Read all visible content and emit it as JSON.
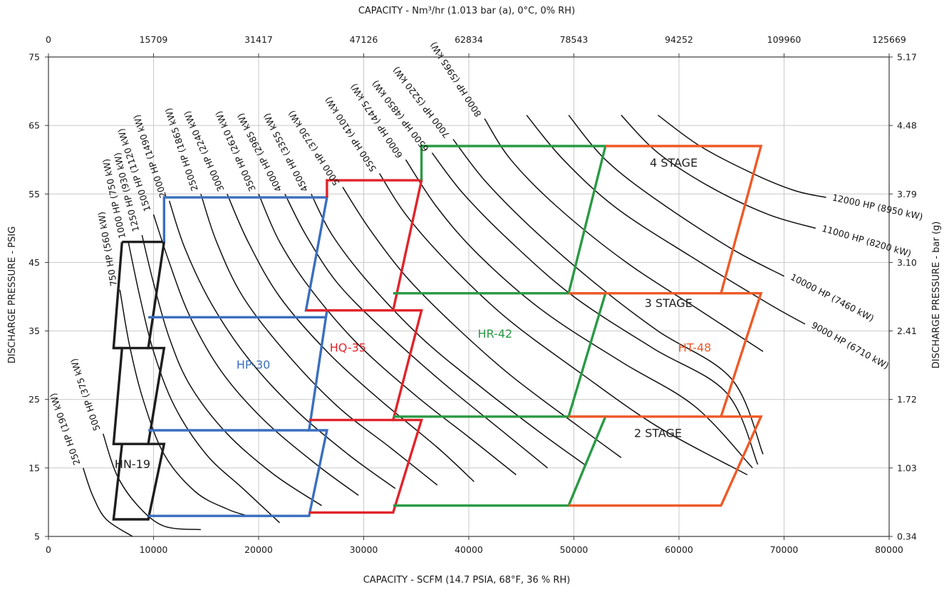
{
  "chart_data": {
    "type": "line",
    "x_bottom_label": "CAPACITY - SCFM (14.7 PSIA, 68°F, 36 % RH)",
    "x_top_label": "CAPACITY - Nm³/hr (1.013 bar (a), 0°C, 0% RH)",
    "y_left_label": "DISCHARGE PRESSURE - PSIG",
    "y_right_label": "DISCHARGE PRESSURE - bar (g)",
    "xlim": [
      0,
      80000
    ],
    "ylim": [
      5,
      75
    ],
    "x_ticks": [
      "0",
      "10000",
      "20000",
      "30000",
      "40000",
      "50000",
      "60000",
      "70000",
      "80000"
    ],
    "x_top_ticks": [
      "0",
      "15709",
      "31417",
      "47126",
      "62834",
      "78543",
      "94252",
      "109960",
      "125669"
    ],
    "y_ticks": [
      "5",
      "15",
      "25",
      "35",
      "45",
      "55",
      "65",
      "75"
    ],
    "y_right_ticks": [
      "0.34",
      "1.03",
      "1.72",
      "2.41",
      "3.10",
      "3.79",
      "4.48",
      "5.17"
    ],
    "grid": true,
    "hp_curves": [
      {
        "name": "250 HP (190 kW)",
        "points": [
          [
            3300,
            15
          ],
          [
            4200,
            11
          ],
          [
            5500,
            7.5
          ],
          [
            8000,
            5
          ]
        ]
      },
      {
        "name": "500 HP (375 kW)",
        "points": [
          [
            5200,
            20
          ],
          [
            6500,
            14
          ],
          [
            8500,
            9.5
          ],
          [
            11000,
            6.5
          ],
          [
            14500,
            6
          ]
        ]
      },
      {
        "name": "750 HP (560 kW)",
        "points": [
          [
            6800,
            41
          ],
          [
            7700,
            33
          ],
          [
            9000,
            25
          ],
          [
            11000,
            17
          ],
          [
            14000,
            11.5
          ],
          [
            17000,
            9
          ],
          [
            19000,
            8
          ]
        ]
      },
      {
        "name": "1000 HP (750 kW)",
        "points": [
          [
            7600,
            48
          ],
          [
            8700,
            40
          ],
          [
            10000,
            32
          ],
          [
            12000,
            24
          ],
          [
            15000,
            17
          ],
          [
            18500,
            12
          ],
          [
            22000,
            7
          ]
        ]
      },
      {
        "name": "1250 HP (930 kW)",
        "points": [
          [
            8900,
            49
          ],
          [
            10000,
            42
          ],
          [
            11500,
            34
          ],
          [
            13500,
            27
          ],
          [
            17000,
            20
          ],
          [
            21500,
            14
          ],
          [
            26000,
            9.5
          ]
        ]
      },
      {
        "name": "1500 HP (1120 kW)",
        "points": [
          [
            10000,
            52
          ],
          [
            11500,
            45
          ],
          [
            13500,
            37
          ],
          [
            16500,
            29
          ],
          [
            20500,
            22
          ],
          [
            25500,
            15.5
          ],
          [
            29500,
            11
          ]
        ]
      },
      {
        "name": "2000 HP (1490 kW)",
        "points": [
          [
            11500,
            54
          ],
          [
            13000,
            47
          ],
          [
            15500,
            39
          ],
          [
            19000,
            31
          ],
          [
            23500,
            23.5
          ],
          [
            28500,
            17
          ],
          [
            33000,
            12
          ]
        ]
      },
      {
        "name": "2500 HP (1865 kW)",
        "points": [
          [
            14500,
            55
          ],
          [
            16000,
            48
          ],
          [
            18500,
            40
          ],
          [
            22500,
            32
          ],
          [
            27500,
            24
          ],
          [
            32500,
            18
          ],
          [
            37000,
            12.5
          ]
        ]
      },
      {
        "name": "3000 HP (2240 kW)",
        "points": [
          [
            17000,
            55
          ],
          [
            19000,
            48
          ],
          [
            22000,
            40
          ],
          [
            26500,
            32
          ],
          [
            31500,
            25
          ],
          [
            37000,
            18
          ],
          [
            40500,
            13
          ]
        ]
      },
      {
        "name": "3500 HP (2610 kW)",
        "points": [
          [
            20000,
            55
          ],
          [
            22000,
            48
          ],
          [
            25000,
            41
          ],
          [
            29500,
            33
          ],
          [
            35000,
            25.5
          ],
          [
            40000,
            19.5
          ],
          [
            44500,
            14
          ]
        ]
      },
      {
        "name": "4000 HP (2985 kW)",
        "points": [
          [
            22500,
            55
          ],
          [
            24500,
            49
          ],
          [
            27500,
            42
          ],
          [
            32000,
            35
          ],
          [
            37500,
            27.5
          ],
          [
            43500,
            20
          ],
          [
            47500,
            15
          ]
        ]
      },
      {
        "name": "4500 HP (3355 kW)",
        "points": [
          [
            25000,
            55
          ],
          [
            27000,
            49
          ],
          [
            30500,
            42
          ],
          [
            35500,
            34
          ],
          [
            41000,
            27
          ],
          [
            46500,
            20.5
          ],
          [
            51000,
            15.5
          ]
        ]
      },
      {
        "name": "5000 HP (3730 kW)",
        "points": [
          [
            28000,
            56
          ],
          [
            30500,
            50
          ],
          [
            34000,
            43
          ],
          [
            38500,
            36
          ],
          [
            44000,
            28.5
          ],
          [
            50500,
            21
          ],
          [
            54500,
            16.5
          ]
        ]
      },
      {
        "name": "5500 HP (4100 kW)",
        "points": [
          [
            31500,
            58
          ],
          [
            34000,
            52
          ],
          [
            38000,
            45
          ],
          [
            43500,
            37
          ],
          [
            50500,
            29
          ],
          [
            58000,
            21
          ],
          [
            66500,
            14
          ]
        ]
      },
      {
        "name": "6000 HP (4475 kW)",
        "points": [
          [
            34000,
            60
          ],
          [
            37000,
            53
          ],
          [
            41000,
            46
          ],
          [
            47000,
            38
          ],
          [
            54500,
            30.5
          ],
          [
            61500,
            24
          ],
          [
            67000,
            15
          ]
        ]
      },
      {
        "name": "6500 HP (4850 kW)",
        "points": [
          [
            36500,
            61
          ],
          [
            39500,
            55
          ],
          [
            44000,
            48
          ],
          [
            50000,
            40
          ],
          [
            57500,
            32.5
          ],
          [
            64500,
            26
          ],
          [
            67500,
            15.5
          ]
        ]
      },
      {
        "name": "7000 HP (5220 kW)",
        "points": [
          [
            38500,
            63
          ],
          [
            41500,
            57
          ],
          [
            46000,
            50
          ],
          [
            52000,
            42
          ],
          [
            58000,
            35
          ],
          [
            65000,
            28
          ],
          [
            68000,
            17
          ]
        ]
      },
      {
        "name": "8000 HP (5965 kW)",
        "points": [
          [
            41500,
            66
          ],
          [
            44000,
            60
          ],
          [
            48500,
            53
          ],
          [
            55000,
            45
          ],
          [
            62000,
            38
          ],
          [
            68000,
            32
          ]
        ]
      },
      {
        "name": "9000 HP (6710 kW)",
        "points": [
          [
            45500,
            66.5
          ],
          [
            49000,
            60
          ],
          [
            54000,
            53
          ],
          [
            61000,
            46
          ],
          [
            68500,
            39
          ],
          [
            72000,
            36
          ]
        ]
      },
      {
        "name": "10000 HP (7460 kW)",
        "points": [
          [
            49500,
            66.5
          ],
          [
            53000,
            60
          ],
          [
            58000,
            54
          ],
          [
            65000,
            47
          ],
          [
            70000,
            43
          ]
        ]
      },
      {
        "name": "11000 HP (8200 kW)",
        "points": [
          [
            54500,
            66.5
          ],
          [
            58000,
            61
          ],
          [
            63000,
            56
          ],
          [
            68500,
            52
          ],
          [
            73000,
            50
          ]
        ]
      },
      {
        "name": "12000 HP (8950 kW)",
        "points": [
          [
            58000,
            66.5
          ],
          [
            62000,
            62
          ],
          [
            67000,
            58
          ],
          [
            71000,
            55.5
          ],
          [
            74000,
            54.5
          ]
        ]
      }
    ],
    "regions": [
      {
        "name": "HN-19",
        "color": "#1e1e1e",
        "boundaries": [
          [
            [
              7000,
              48
            ],
            [
              11000,
              48
            ],
            [
              9500,
              32.5
            ],
            [
              11000,
              32.5
            ],
            [
              9500,
              18.5
            ],
            [
              11000,
              18.5
            ],
            [
              9500,
              7.5
            ],
            [
              6200,
              7.5
            ],
            [
              7000,
              18.5
            ],
            [
              6200,
              18.5
            ],
            [
              7000,
              32.5
            ],
            [
              6200,
              32.5
            ],
            [
              7000,
              48
            ]
          ],
          [
            [
              6200,
              32.5
            ],
            [
              9500,
              32.5
            ]
          ],
          [
            [
              6200,
              18.5
            ],
            [
              9500,
              18.5
            ]
          ]
        ]
      },
      {
        "name": "HP-30",
        "color": "#3a6fbf",
        "boundaries": [
          [
            [
              11000,
              48
            ],
            [
              11000,
              54.5
            ],
            [
              26500,
              54.5
            ],
            [
              24500,
              38
            ],
            [
              26500,
              38
            ],
            [
              24800,
              20.5
            ],
            [
              26500,
              20.5
            ],
            [
              24800,
              8
            ],
            [
              9500,
              8
            ]
          ],
          [
            [
              9500,
              37
            ],
            [
              26500,
              37
            ]
          ],
          [
            [
              9500,
              20.5
            ],
            [
              24800,
              20.5
            ]
          ]
        ]
      },
      {
        "name": "HQ-35",
        "color": "#e0242b",
        "boundaries": [
          [
            [
              26500,
              54.5
            ],
            [
              26500,
              57
            ],
            [
              35500,
              57
            ],
            [
              32800,
              38
            ],
            [
              35500,
              38
            ],
            [
              32800,
              22
            ],
            [
              35500,
              22
            ],
            [
              32800,
              8.5
            ],
            [
              24800,
              8.5
            ]
          ],
          [
            [
              24500,
              38
            ],
            [
              32800,
              38
            ]
          ],
          [
            [
              24800,
              22
            ],
            [
              32800,
              22
            ]
          ]
        ]
      },
      {
        "name": "HR-42",
        "color": "#2a9a45",
        "boundaries": [
          [
            [
              35500,
              57
            ],
            [
              35500,
              62
            ],
            [
              53000,
              62
            ],
            [
              49500,
              40.5
            ],
            [
              53000,
              40.5
            ],
            [
              49500,
              22.5
            ],
            [
              53000,
              22.5
            ],
            [
              49500,
              9.5
            ],
            [
              32800,
              9.5
            ]
          ],
          [
            [
              32800,
              40.5
            ],
            [
              49500,
              40.5
            ]
          ],
          [
            [
              32800,
              22.5
            ],
            [
              49500,
              22.5
            ]
          ]
        ]
      },
      {
        "name": "HT-48",
        "color": "#ee5a28",
        "boundaries": [
          [
            [
              53000,
              62
            ],
            [
              67800,
              62
            ],
            [
              64000,
              40.5
            ],
            [
              67800,
              40.5
            ],
            [
              64000,
              22.5
            ],
            [
              67800,
              22.5
            ],
            [
              64000,
              9.5
            ],
            [
              49500,
              9.5
            ]
          ],
          [
            [
              49500,
              40.5
            ],
            [
              64000,
              40.5
            ]
          ],
          [
            [
              49500,
              22.5
            ],
            [
              64000,
              22.5
            ]
          ]
        ]
      }
    ],
    "region_labels": [
      {
        "name": "HN-19",
        "color": "#1e1e1e",
        "x": 8000,
        "y": 15
      },
      {
        "name": "HP-30",
        "color": "#3a6fbf",
        "x": 19500,
        "y": 29.5
      },
      {
        "name": "HQ-35",
        "color": "#e0242b",
        "x": 28500,
        "y": 32
      },
      {
        "name": "HR-42",
        "color": "#2a9a45",
        "x": 42500,
        "y": 34
      },
      {
        "name": "HT-48",
        "color": "#ee5a28",
        "x": 61500,
        "y": 32
      }
    ],
    "stage_labels": [
      {
        "text": "4 STAGE",
        "x": 59500,
        "y": 59
      },
      {
        "text": "3 STAGE",
        "x": 59000,
        "y": 38.5
      },
      {
        "text": "2 STAGE",
        "x": 58000,
        "y": 19.5
      }
    ]
  }
}
